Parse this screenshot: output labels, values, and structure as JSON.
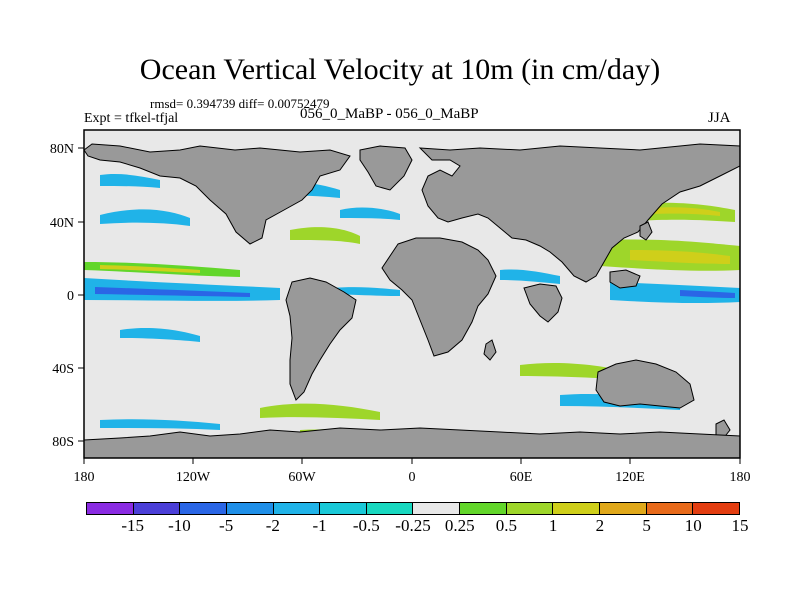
{
  "header": {
    "title": "Ocean Vertical Velocity at 10m (in cm/day)",
    "stats": "rmsd= 0.394739 diff= 0.00752479",
    "expt": "Expt = tfkel-tfjal",
    "subtitle": "056_0_MaBP - 056_0_MaBP",
    "season": "JJA"
  },
  "map": {
    "x_ticks": [
      "180",
      "120W",
      "60W",
      "0",
      "60E",
      "120E",
      "180"
    ],
    "y_ticks": [
      "80N",
      "40N",
      "0",
      "40S",
      "80S"
    ],
    "colors": {
      "land": "#999999",
      "ocean_background": "#e8e8e8"
    }
  },
  "colorbar": {
    "labels": [
      "-15",
      "-10",
      "-5",
      "-2",
      "-1",
      "-0.5",
      "-0.25",
      "0.25",
      "0.5",
      "1",
      "2",
      "5",
      "10",
      "15"
    ],
    "colors": [
      "#8a2be2",
      "#4b3fd8",
      "#2a66e6",
      "#1f8fe8",
      "#20b3e8",
      "#19c9d8",
      "#18d8c0",
      "#e8e8e8",
      "#62d62a",
      "#9ed62a",
      "#cfcf1a",
      "#e0a81a",
      "#e86a1a",
      "#e33d10"
    ]
  }
}
